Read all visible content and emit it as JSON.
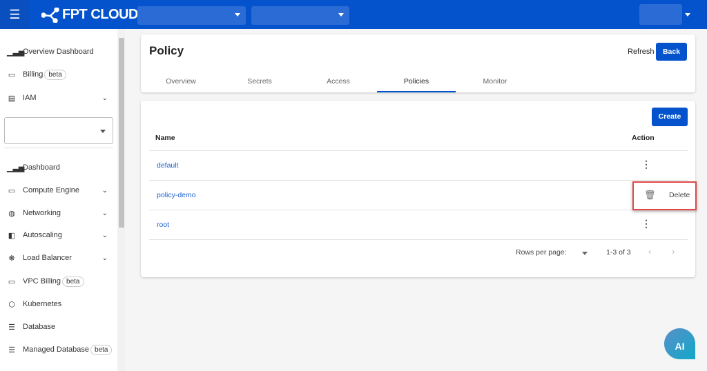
{
  "header": {
    "menu_icon": "hamburger-icon",
    "logo_text": "FPT CLOUD"
  },
  "sidebar": {
    "items": [
      {
        "label": "Overview Dashboard",
        "icon": "bar-chart-icon"
      },
      {
        "label": "Billing",
        "icon": "wallet-icon",
        "badge": "beta"
      },
      {
        "label": "IAM",
        "icon": "id-card-icon"
      },
      {
        "label": "Dashboard",
        "icon": "bar-chart-icon"
      },
      {
        "label": "Compute Engine",
        "icon": "monitor-icon"
      },
      {
        "label": "Networking",
        "icon": "globe-icon"
      },
      {
        "label": "Autoscaling",
        "icon": "autoscale-icon"
      },
      {
        "label": "Load Balancer",
        "icon": "balancer-icon"
      },
      {
        "label": "VPC Billing",
        "icon": "wallet-icon",
        "badge": "beta"
      },
      {
        "label": "Kubernetes",
        "icon": "cube-icon"
      },
      {
        "label": "Database",
        "icon": "database-icon"
      },
      {
        "label": "Managed Database",
        "icon": "database-icon",
        "badge": "beta"
      }
    ]
  },
  "page": {
    "title": "Policy",
    "refresh": "Refresh",
    "back": "Back",
    "tabs": [
      "Overview",
      "Secrets",
      "Access",
      "Policies",
      "Monitor"
    ],
    "active_tab": "Policies"
  },
  "table": {
    "create": "Create",
    "headers": {
      "name": "Name",
      "action": "Action"
    },
    "rows": [
      "default",
      "policy-demo",
      "root"
    ],
    "popup": {
      "label": "Delete",
      "icon": "trash-icon"
    },
    "pagination": {
      "rows_per_page": "Rows per page:",
      "range": "1-3 of 3"
    }
  },
  "ai_button": "AI",
  "colors": {
    "primary": "#0453cc",
    "link": "#1a5fd0",
    "highlight": "#e04848"
  }
}
